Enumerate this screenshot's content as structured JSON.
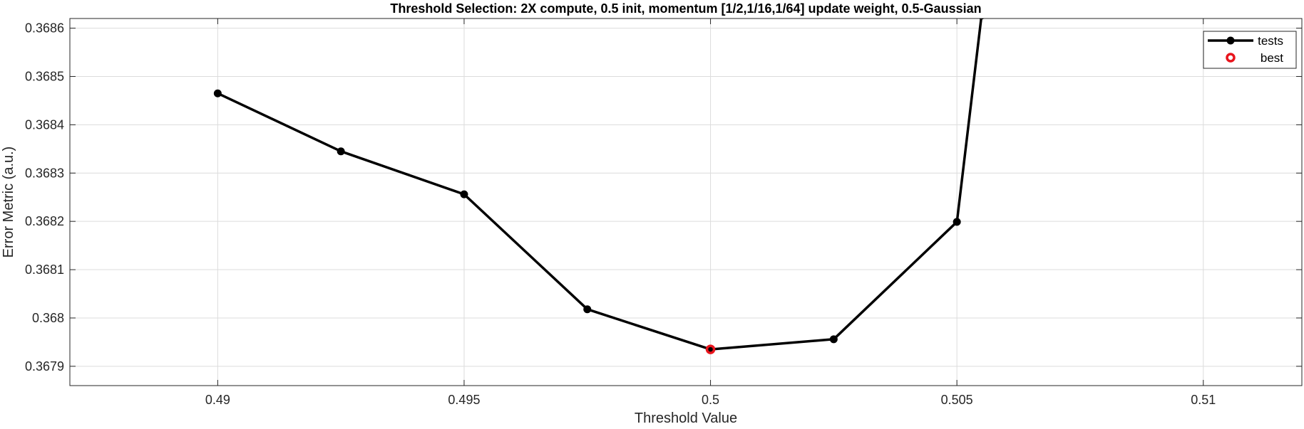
{
  "chart_data": {
    "type": "line",
    "title": "Threshold Selection: 2X compute, 0.5 init, momentum [1/2,1/16,1/64] update weight, 0.5-Gaussian",
    "xlabel": "Threshold Value",
    "ylabel": "Error Metric (a.u.)",
    "xlim": [
      0.487,
      0.512
    ],
    "ylim": [
      0.36786,
      0.36862
    ],
    "xticks": [
      0.49,
      0.495,
      0.5,
      0.505,
      0.51
    ],
    "xtick_labels": [
      "0.49",
      "0.495",
      "0.5",
      "0.505",
      "0.51"
    ],
    "yticks": [
      0.3679,
      0.368,
      0.3681,
      0.3682,
      0.3683,
      0.3684,
      0.3685,
      0.3686
    ],
    "ytick_labels": [
      "0.3679",
      "0.368",
      "0.3681",
      "0.3682",
      "0.3683",
      "0.3684",
      "0.3685",
      "0.3686"
    ],
    "grid": true,
    "legend_position": "top-right",
    "series": [
      {
        "name": "tests",
        "color": "#000000",
        "x": [
          0.49,
          0.4925,
          0.495,
          0.4975,
          0.5,
          0.5025,
          0.505,
          0.5055
        ],
        "y": [
          0.368465,
          0.368345,
          0.368256,
          0.368018,
          0.367935,
          0.367956,
          0.368199,
          0.368626
        ]
      },
      {
        "name": "best",
        "color": "#e8141c",
        "x": [
          0.5
        ],
        "y": [
          0.367935
        ]
      }
    ]
  }
}
